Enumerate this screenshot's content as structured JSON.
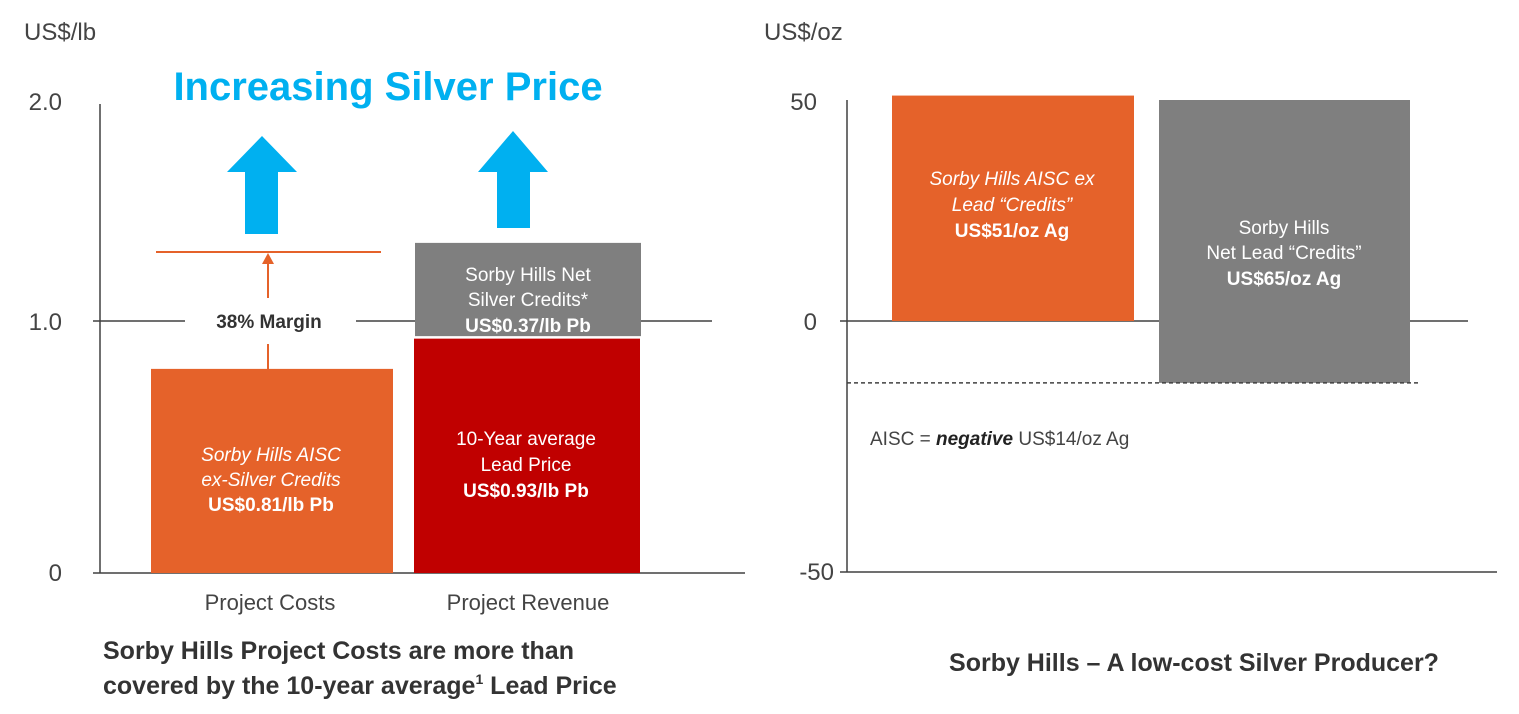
{
  "colors": {
    "orange": "#E5622A",
    "red": "#C00000",
    "grey": "#7F7F7F",
    "arrow_blue": "#00B0F0",
    "headline_blue": "#00B0F0",
    "axis": "#404040"
  },
  "left_headline": "Increasing Silver Price",
  "left_caption_line1": "Sorby Hills Project Costs are more than",
  "left_caption_line2_a": "covered by the 10-year average",
  "left_caption_sup": "1",
  "left_caption_line2_b": " Lead Price",
  "right_caption": "Sorby Hills – A low-cost Silver Producer?",
  "margin_label": "38% Margin",
  "aisc_note": {
    "prefix": "AISC = ",
    "bold": "negative",
    "suffix": " US$14/oz Ag"
  },
  "chart_data": [
    {
      "type": "bar",
      "stacked": true,
      "ylabel": "US$/lb",
      "ylim": [
        0,
        2.0
      ],
      "yticks": [
        "2.0",
        "1.0",
        "0"
      ],
      "categories": [
        "Project Costs",
        "Project Revenue"
      ],
      "margin_line": 1.31,
      "bars": [
        {
          "category": "Project Costs",
          "value": 0.81,
          "color": "orange",
          "label_lines": [
            "Sorby Hills AISC",
            "ex-Silver Credits"
          ],
          "label_italic": true,
          "value_label": "US$0.81/lb Pb"
        },
        {
          "category": "Project Revenue",
          "value": 0.93,
          "color": "red",
          "label_lines": [
            "10-Year average",
            "Lead Price"
          ],
          "label_italic": false,
          "value_label": "US$0.93/lb Pb"
        },
        {
          "category": "Project Revenue",
          "base": 0.94,
          "value": 0.37,
          "color": "grey",
          "label_lines": [
            "Sorby Hills Net",
            "Silver Credits*"
          ],
          "label_italic": false,
          "value_label": "US$0.37/lb Pb"
        }
      ]
    },
    {
      "type": "bar",
      "ylabel": "US$/oz",
      "ylim": [
        -50,
        50
      ],
      "yticks": [
        "50",
        "0",
        "-50"
      ],
      "reference_line": -14,
      "bars": [
        {
          "from": 0,
          "to": 51,
          "color": "orange",
          "label_lines": [
            "Sorby Hills AISC ex",
            "Lead “Credits”"
          ],
          "label_italic": true,
          "value_label": "US$51/oz Ag"
        },
        {
          "from": 50,
          "to": -14,
          "color": "grey",
          "label_lines": [
            "Sorby Hills",
            "Net Lead “Credits”"
          ],
          "label_italic": false,
          "value_label": "US$65/oz Ag"
        }
      ]
    }
  ]
}
